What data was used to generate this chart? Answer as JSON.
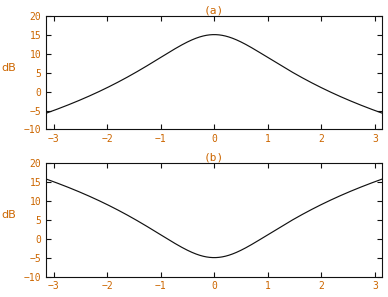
{
  "title_a": "(a)",
  "title_b": "(b)",
  "ylabel": "dB",
  "xlim": [
    -3.14159,
    3.14159
  ],
  "ylim": [
    -10,
    20
  ],
  "xticks": [
    -3,
    -2,
    -1,
    0,
    1,
    2,
    3
  ],
  "yticks": [
    -10,
    -5,
    0,
    5,
    10,
    15,
    20
  ],
  "label_color": "#cc6600",
  "curve_color": "#111111",
  "spine_color": "#111111",
  "bg_color": "#ffffff",
  "figsize": [
    3.88,
    2.97
  ],
  "dpi": 100,
  "curve_lw": 0.85,
  "title_fontsize": 8,
  "tick_fontsize": 7,
  "ylabel_fontsize": 8,
  "peak_linear": 5.623413,
  "power_n": 10
}
